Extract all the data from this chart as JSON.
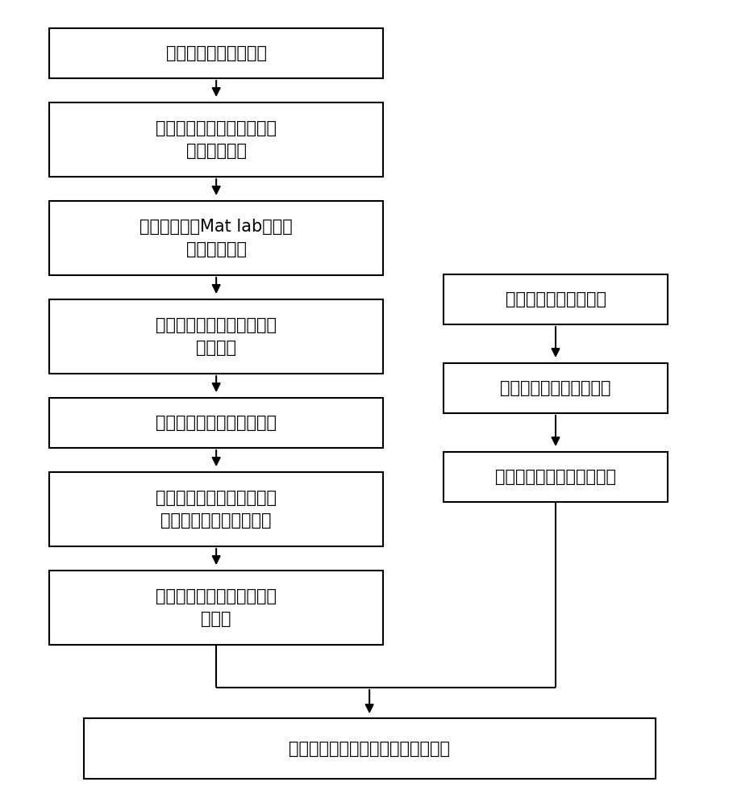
{
  "background_color": "#ffffff",
  "box_edge_color": "#000000",
  "box_fill_color": "#ffffff",
  "text_color": "#000000",
  "arrow_color": "#000000",
  "font_size": 15,
  "left_boxes": [
    {
      "label": "声发射仪采集原始信号",
      "lines": 1
    },
    {
      "label": "利用小波消噪技术进行降噪\n得到观测信号",
      "lines": 2
    },
    {
      "label": "将观测信号与Mat lab随机生\n成的矩阵混合",
      "lines": 2
    },
    {
      "label": "生成新的混合信号即为新的\n观测信号",
      "lines": 2
    },
    {
      "label": "对新观测信号进行白化处理",
      "lines": 1
    },
    {
      "label": "利用记忆模拟退火粒子群的\n快速盲分离分出源离信号",
      "lines": 2
    },
    {
      "label": "根据分离出的信号奇异点得\n出时差",
      "lines": 2
    }
  ],
  "right_boxes": [
    {
      "label": "相关仪采集声发射信号",
      "lines": 1
    },
    {
      "label": "对采集信号进行数据分析",
      "lines": 1
    },
    {
      "label": "得出管道泄漏信号传播速度",
      "lines": 1
    }
  ],
  "bottom_box": {
    "label": "根据互相关定位公式计算泄漏源位置"
  },
  "figsize": [
    9.09,
    10.0
  ],
  "dpi": 100
}
